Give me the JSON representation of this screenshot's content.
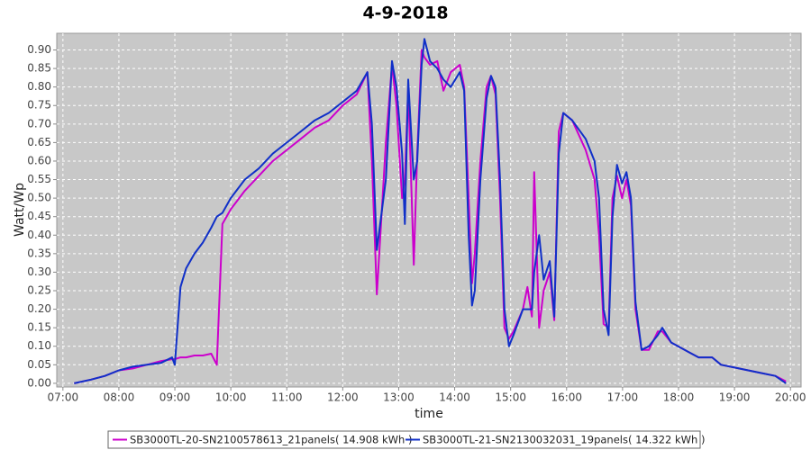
{
  "chart_data": {
    "type": "line",
    "title": "4-9-2018",
    "x_label": "time",
    "y_label": "Watt/Wp",
    "x": [
      7.2,
      7.5,
      7.75,
      8.0,
      8.25,
      8.5,
      8.75,
      8.95,
      9.0,
      9.1,
      9.2,
      9.35,
      9.5,
      9.65,
      9.75,
      9.85,
      10.0,
      10.25,
      10.5,
      10.75,
      11.0,
      11.25,
      11.5,
      11.75,
      12.0,
      12.25,
      12.44,
      12.52,
      12.61,
      12.77,
      12.88,
      12.96,
      13.06,
      13.11,
      13.17,
      13.27,
      13.33,
      13.41,
      13.46,
      13.56,
      13.69,
      13.8,
      13.93,
      14.09,
      14.17,
      14.25,
      14.31,
      14.36,
      14.46,
      14.57,
      14.65,
      14.73,
      14.81,
      14.89,
      14.97,
      15.05,
      15.22,
      15.3,
      15.38,
      15.42,
      15.51,
      15.59,
      15.7,
      15.78,
      15.86,
      15.94,
      16.1,
      16.34,
      16.5,
      16.58,
      16.66,
      16.75,
      16.82,
      16.9,
      16.99,
      17.07,
      17.15,
      17.23,
      17.34,
      17.47,
      17.63,
      17.71,
      17.87,
      18.11,
      18.36,
      18.6,
      18.76,
      19.08,
      19.4,
      19.73,
      19.92
    ],
    "series": [
      {
        "name": "SB3000TL-20-SN2100578613_21panels( 14.908 kWh )",
        "color": "#cc00cc",
        "values": [
          0,
          0.01,
          0.02,
          0.035,
          0.04,
          0.05,
          0.06,
          0.065,
          0.065,
          0.07,
          0.07,
          0.075,
          0.075,
          0.08,
          0.05,
          0.43,
          0.47,
          0.52,
          0.56,
          0.6,
          0.63,
          0.66,
          0.69,
          0.71,
          0.75,
          0.78,
          0.84,
          0.6,
          0.24,
          0.65,
          0.86,
          0.75,
          0.5,
          0.55,
          0.8,
          0.32,
          0.62,
          0.9,
          0.88,
          0.86,
          0.87,
          0.79,
          0.84,
          0.86,
          0.8,
          0.5,
          0.27,
          0.35,
          0.6,
          0.8,
          0.83,
          0.78,
          0.5,
          0.15,
          0.12,
          0.14,
          0.2,
          0.26,
          0.18,
          0.57,
          0.15,
          0.25,
          0.3,
          0.17,
          0.68,
          0.73,
          0.71,
          0.63,
          0.55,
          0.4,
          0.16,
          0.15,
          0.5,
          0.56,
          0.5,
          0.55,
          0.48,
          0.2,
          0.09,
          0.09,
          0.14,
          0.14,
          0.11,
          0.09,
          0.07,
          0.07,
          0.05,
          0.04,
          0.03,
          0.02,
          0.005
        ]
      },
      {
        "name": "SB3000TL-21-SN2130032031_19panels( 14.322 kWh )",
        "color": "#1030c8",
        "values": [
          0,
          0.01,
          0.02,
          0.035,
          0.045,
          0.05,
          0.055,
          0.07,
          0.05,
          0.26,
          0.31,
          0.35,
          0.38,
          0.42,
          0.45,
          0.46,
          0.5,
          0.55,
          0.58,
          0.62,
          0.65,
          0.68,
          0.71,
          0.73,
          0.76,
          0.79,
          0.84,
          0.7,
          0.36,
          0.55,
          0.87,
          0.8,
          0.62,
          0.43,
          0.82,
          0.55,
          0.6,
          0.86,
          0.93,
          0.87,
          0.85,
          0.82,
          0.8,
          0.84,
          0.79,
          0.4,
          0.21,
          0.25,
          0.55,
          0.77,
          0.83,
          0.8,
          0.55,
          0.2,
          0.1,
          0.13,
          0.2,
          0.2,
          0.2,
          0.3,
          0.4,
          0.28,
          0.33,
          0.18,
          0.62,
          0.73,
          0.71,
          0.66,
          0.6,
          0.5,
          0.2,
          0.13,
          0.45,
          0.59,
          0.54,
          0.57,
          0.5,
          0.22,
          0.09,
          0.1,
          0.13,
          0.15,
          0.11,
          0.09,
          0.07,
          0.07,
          0.05,
          0.04,
          0.03,
          0.02,
          0
        ]
      }
    ],
    "xlim": [
      6.89,
      20.19
    ],
    "ylim": [
      -0.01,
      0.945
    ],
    "xticks": [
      {
        "value": 7,
        "label": "07:00"
      },
      {
        "value": 8,
        "label": "08:00"
      },
      {
        "value": 9,
        "label": "09:00"
      },
      {
        "value": 10,
        "label": "10:00"
      },
      {
        "value": 11,
        "label": "11:00"
      },
      {
        "value": 12,
        "label": "12:00"
      },
      {
        "value": 13,
        "label": "13:00"
      },
      {
        "value": 14,
        "label": "14:00"
      },
      {
        "value": 15,
        "label": "15:00"
      },
      {
        "value": 16,
        "label": "16:00"
      },
      {
        "value": 17,
        "label": "17:00"
      },
      {
        "value": 18,
        "label": "18:00"
      },
      {
        "value": 19,
        "label": "19:00"
      },
      {
        "value": 20,
        "label": "20:00"
      }
    ],
    "yticks": [
      {
        "value": 0,
        "label": "0.00"
      },
      {
        "value": 0.05,
        "label": "0.05"
      },
      {
        "value": 0.1,
        "label": "0.10"
      },
      {
        "value": 0.15,
        "label": "0.15"
      },
      {
        "value": 0.2,
        "label": "0.20"
      },
      {
        "value": 0.25,
        "label": "0.25"
      },
      {
        "value": 0.3,
        "label": "0.30"
      },
      {
        "value": 0.35,
        "label": "0.35"
      },
      {
        "value": 0.4,
        "label": "0.40"
      },
      {
        "value": 0.45,
        "label": "0.45"
      },
      {
        "value": 0.5,
        "label": "0.50"
      },
      {
        "value": 0.55,
        "label": "0.55"
      },
      {
        "value": 0.6,
        "label": "0.60"
      },
      {
        "value": 0.65,
        "label": "0.65"
      },
      {
        "value": 0.7,
        "label": "0.70"
      },
      {
        "value": 0.75,
        "label": "0.75"
      },
      {
        "value": 0.8,
        "label": "0.80"
      },
      {
        "value": 0.85,
        "label": "0.85"
      },
      {
        "value": 0.9,
        "label": "0.90"
      }
    ],
    "grid": true,
    "legend": "bottom"
  }
}
